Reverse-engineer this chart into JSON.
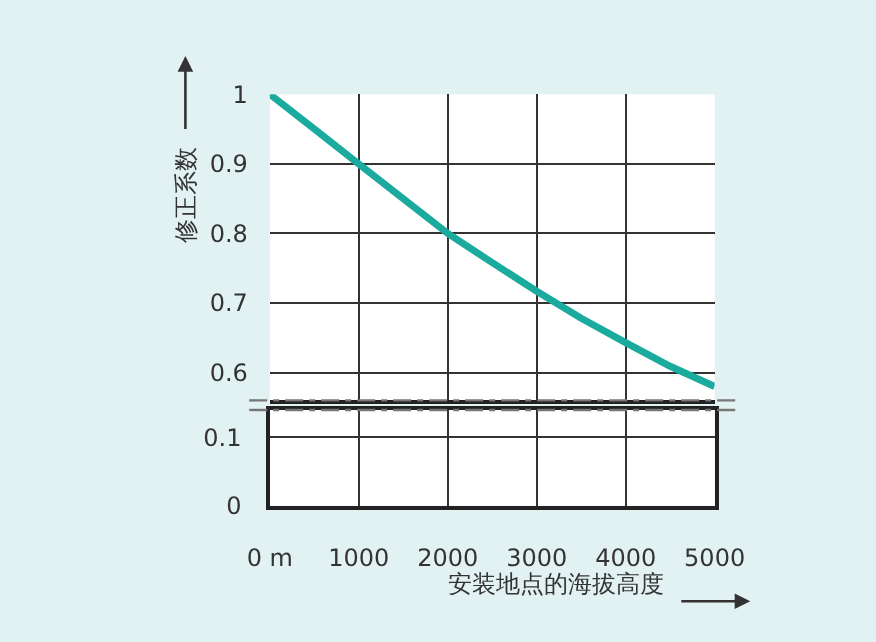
{
  "chart_data": [
    {
      "type": "line",
      "ylabel": "修正系数",
      "x": [
        0,
        500,
        1000,
        1500,
        2000,
        2500,
        3000,
        3500,
        4000,
        4500,
        5000
      ],
      "series": [
        {
          "color": "#1aaa9e",
          "values": [
            1.0,
            0.95,
            0.9,
            0.85,
            0.8,
            0.758,
            0.717,
            0.678,
            0.643,
            0.609,
            0.58
          ]
        }
      ],
      "xlim": [
        0,
        5000
      ],
      "xticks": [
        0,
        1000,
        2000,
        3000,
        4000,
        5000
      ],
      "ylim": [
        0.56,
        1.0
      ],
      "yticks": [
        0.6,
        0.7,
        0.8,
        0.9,
        1
      ],
      "grid": true,
      "tick_labels": "y",
      "marker": "none",
      "line_style": "solid"
    },
    {
      "type": "line",
      "xlabel": "安装地点的海拔高度",
      "xlim": [
        0,
        5000
      ],
      "xticks": [
        {
          "value": 0,
          "label": "0 m"
        },
        1000,
        2000,
        3000,
        4000,
        5000
      ],
      "ylim": [
        0,
        0.14
      ],
      "yticks": [
        0,
        0.1
      ],
      "grid": true
    }
  ]
}
